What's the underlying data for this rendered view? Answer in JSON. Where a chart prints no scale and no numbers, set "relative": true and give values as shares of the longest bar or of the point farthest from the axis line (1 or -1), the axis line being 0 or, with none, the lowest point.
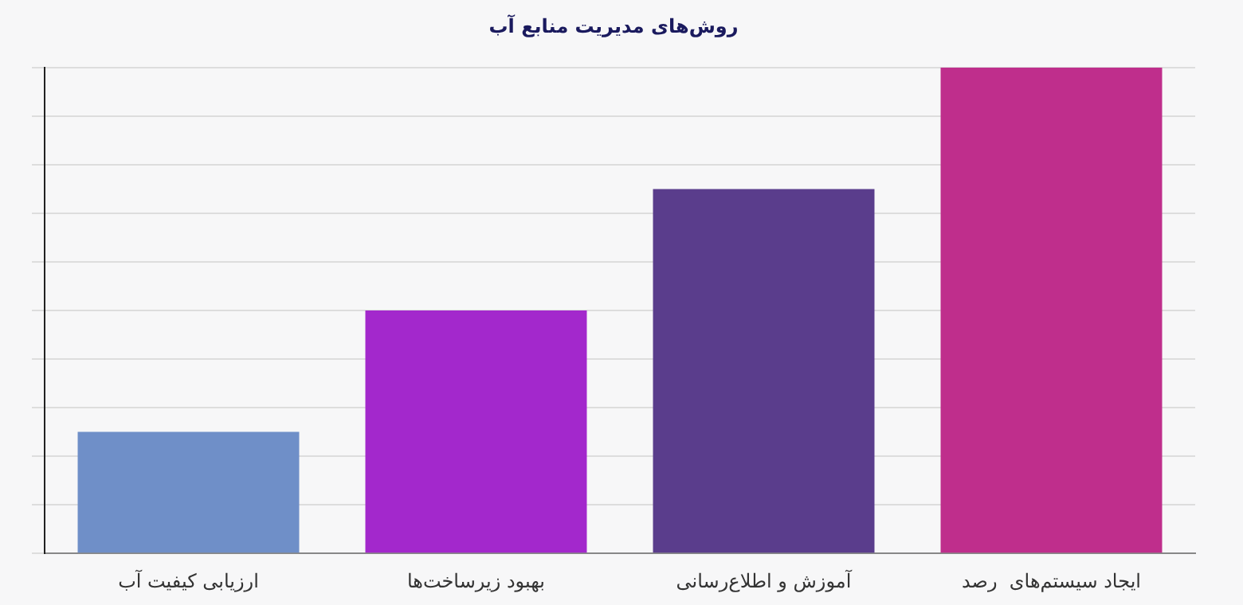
{
  "chart_data": {
    "type": "bar",
    "title": "روش‌های مدیریت منابع آب",
    "categories": [
      "ارزیابی کیفیت آب",
      "بهبود زیرساخت‌ها",
      "آموزش و اطلاع‌رسانی",
      "ایجاد سیستم‌های  رصد"
    ],
    "values": [
      0.25,
      0.5,
      0.75,
      1
    ],
    "colors": [
      "#6f8fc8",
      "#a328cc",
      "#5a3d8c",
      "#bf2e8c"
    ],
    "relative": true,
    "grid": "y"
  }
}
